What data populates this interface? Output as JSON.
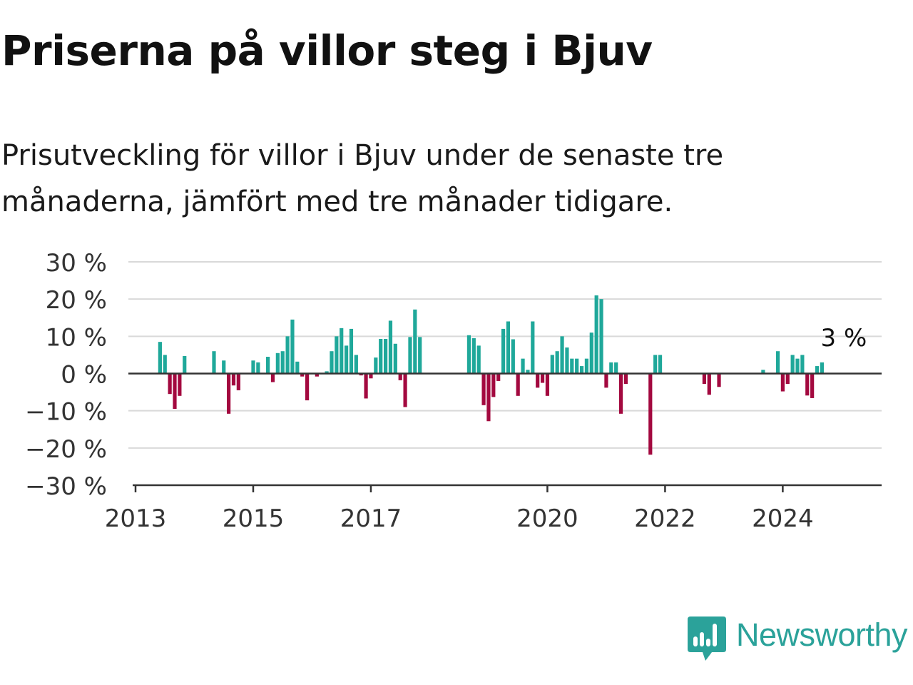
{
  "title": "Priserna på villor steg i Bjuv",
  "subtitle": "Prisutveckling för villor i Bjuv under de senaste tre månaderna, jämfört med tre månader tidigare.",
  "brand": {
    "name": "Newsworthy",
    "icon": "newsworthy-logo-icon",
    "color": "#2ba29a"
  },
  "chart_data": {
    "type": "bar",
    "title": "Priserna på villor steg i Bjuv",
    "xlabel": "",
    "ylabel": "",
    "unit": "%",
    "ylim": [
      -30,
      30
    ],
    "yticks": [
      30,
      20,
      10,
      0,
      -10,
      -20,
      -30
    ],
    "ytick_labels": [
      "30 %",
      "20 %",
      "10 %",
      "0 %",
      "−10 %",
      "−20 %",
      "−30 %"
    ],
    "xlim": [
      "2013-01",
      "2025-08"
    ],
    "xticks": [
      "2013-01",
      "2015-01",
      "2017-01",
      "2020-01",
      "2022-01",
      "2024-01"
    ],
    "xtick_labels": [
      "2013",
      "2015",
      "2017",
      "2020",
      "2022",
      "2024"
    ],
    "grid": "horizontal",
    "colors": {
      "positive": "#1fa89a",
      "negative": "#a3093f",
      "grid": "#d9d9d9",
      "axis": "#333333"
    },
    "annotation": {
      "x": "2025-01",
      "text": "3 %"
    },
    "series": [
      {
        "x": [
          "2013-06",
          "2013-07",
          "2013-08",
          "2013-09",
          "2013-10",
          "2013-11",
          "2014-05",
          "2014-07",
          "2014-08",
          "2014-09",
          "2014-10",
          "2015-01",
          "2015-02",
          "2015-04",
          "2015-05",
          "2015-06",
          "2015-07",
          "2015-08",
          "2015-09",
          "2015-10",
          "2015-11",
          "2015-12",
          "2016-02",
          "2016-04",
          "2016-05",
          "2016-06",
          "2016-07",
          "2016-08",
          "2016-09",
          "2016-10",
          "2016-11",
          "2016-12",
          "2017-01",
          "2017-02",
          "2017-03",
          "2017-04",
          "2017-05",
          "2017-06",
          "2017-07",
          "2017-08",
          "2017-09",
          "2017-10",
          "2017-11",
          "2018-09",
          "2018-10",
          "2018-11",
          "2018-12",
          "2019-01",
          "2019-02",
          "2019-03",
          "2019-04",
          "2019-05",
          "2019-06",
          "2019-07",
          "2019-08",
          "2019-09",
          "2019-10",
          "2019-11",
          "2019-12",
          "2020-01",
          "2020-02",
          "2020-03",
          "2020-04",
          "2020-05",
          "2020-06",
          "2020-07",
          "2020-08",
          "2020-09",
          "2020-10",
          "2020-11",
          "2020-12",
          "2021-01",
          "2021-02",
          "2021-03",
          "2021-04",
          "2021-05",
          "2021-10",
          "2021-11",
          "2021-12",
          "2022-09",
          "2022-10",
          "2022-12",
          "2023-09",
          "2023-12",
          "2024-01",
          "2024-02",
          "2024-03",
          "2024-04",
          "2024-05",
          "2024-06",
          "2024-07",
          "2024-08",
          "2024-09",
          "2024-10",
          "2024-11",
          "2024-12",
          "2025-01",
          "2025-02",
          "2025-03",
          "2025-04"
        ],
        "values": [
          8.5,
          5.0,
          -5.5,
          -9.5,
          -6.0,
          4.7,
          6.0,
          3.5,
          -10.8,
          -3.2,
          -4.5,
          3.5,
          3.0,
          4.5,
          -2.3,
          5.5,
          6.0,
          10.0,
          14.5,
          3.2,
          -0.8,
          -7.2,
          -0.8,
          0.6,
          6.0,
          10.0,
          12.2,
          7.5,
          12.0,
          5.0,
          -0.5,
          -6.7,
          -1.3,
          4.3,
          9.3,
          9.3,
          14.2,
          8.0,
          -1.8,
          -9.0,
          9.8,
          17.2,
          9.8,
          10.3,
          9.5,
          7.5,
          -8.5,
          -12.8,
          -6.3,
          -2.0,
          12.0,
          14.0,
          9.2,
          -6.0,
          4.0,
          1.0,
          14.0,
          -3.8,
          -2.5,
          -6.0,
          5.0,
          6.0,
          10.0,
          7.0,
          4.0,
          4.0,
          2.0,
          4.0,
          11.0,
          21.0,
          20.0,
          -3.8,
          3.0,
          3.0,
          -10.8,
          -2.8,
          -21.8,
          5.0,
          5.0,
          -2.8,
          -5.7,
          -3.6,
          1.0,
          6.0,
          -4.8,
          -2.8,
          5.0,
          4.0,
          5.0,
          -5.9,
          -6.6,
          2.0,
          3.0,
          0,
          0,
          0,
          0,
          0,
          0,
          0
        ]
      }
    ]
  }
}
